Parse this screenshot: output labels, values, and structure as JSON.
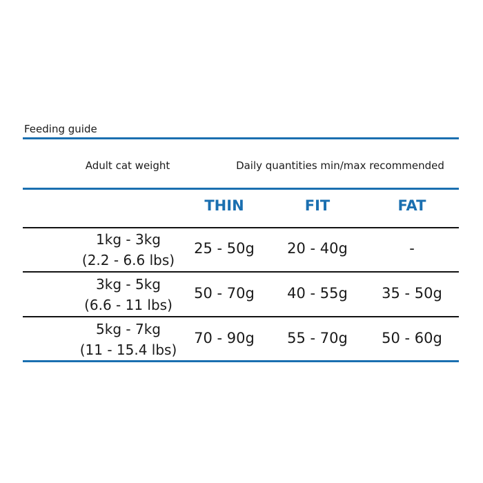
{
  "title": "Feeding guide",
  "header": [
    "Adult cat weight",
    "Daily quantities min/max recommended"
  ],
  "columns": [
    "THIN",
    "FIT",
    "FAT"
  ],
  "rows": [
    {
      "weight": [
        "1kg - 3kg",
        "(2.2 - 6.6 lbs)"
      ],
      "values": [
        "25 - 50g",
        "20 - 40g",
        "-"
      ]
    },
    {
      "weight": [
        "3kg - 5kg",
        "(6.6 - 11 lbs)"
      ],
      "values": [
        "50 - 70g",
        "40 - 55g",
        "35 - 50g"
      ]
    },
    {
      "weight": [
        "5kg - 7kg",
        "(11 - 15.4 lbs)"
      ],
      "values": [
        "70 - 90g",
        "55 - 70g",
        "50 - 60g"
      ]
    }
  ]
}
